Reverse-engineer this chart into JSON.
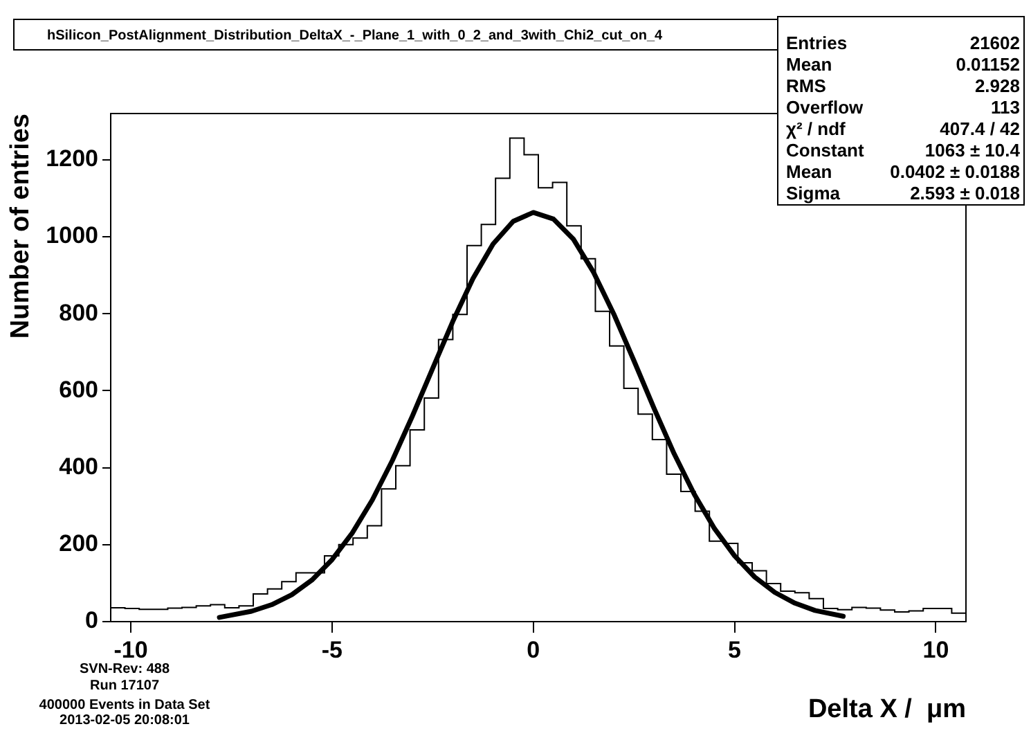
{
  "chart_data": {
    "type": "histogram",
    "title": "hSilicon_PostAlignment_Distribution_DeltaX_-_Plane_1_with_0_2_and_3with_Chi2_cut_on_4",
    "xlabel": "Delta X /  μm",
    "ylabel": "Number of entries",
    "series": [
      {
        "type": "histogram",
        "color": "#000000",
        "bins": [
          -10.5,
          -10.146,
          -9.792,
          -9.438,
          -9.083,
          -8.729,
          -8.375,
          -8.021,
          -7.667,
          -7.313,
          -6.958,
          -6.604,
          -6.25,
          -5.896,
          -5.542,
          -5.188,
          -4.833,
          -4.479,
          -4.125,
          -3.771,
          -3.417,
          -3.063,
          -2.708,
          -2.354,
          -2.0,
          -1.646,
          -1.292,
          -0.938,
          -0.583,
          -0.229,
          0.125,
          0.479,
          0.833,
          1.188,
          1.542,
          1.896,
          2.25,
          2.604,
          2.958,
          3.313,
          3.667,
          4.021,
          4.375,
          4.729,
          5.083,
          5.438,
          5.792,
          6.146,
          6.5,
          6.854,
          7.208,
          7.563,
          7.917,
          8.271,
          8.625,
          8.979,
          9.333,
          9.688,
          10.042,
          10.396,
          10.75
        ],
        "values": [
          36,
          34,
          32,
          32,
          35,
          37,
          41,
          44,
          36,
          41,
          72,
          85,
          104,
          127,
          127,
          171,
          200,
          217,
          249,
          345,
          405,
          498,
          581,
          733,
          798,
          977,
          1032,
          1152,
          1256,
          1213,
          1127,
          1141,
          1028,
          943,
          806,
          716,
          606,
          539,
          473,
          383,
          338,
          287,
          209,
          203,
          153,
          132,
          99,
          79,
          75,
          60,
          34,
          31,
          37,
          35,
          30,
          25,
          28,
          34,
          34,
          22
        ]
      },
      {
        "type": "line",
        "color": "#000000",
        "x": [
          -7.8,
          -7,
          -6.5,
          -6,
          -5.5,
          -5,
          -4.5,
          -4,
          -3.5,
          -3,
          -2.5,
          -2,
          -1.5,
          -1,
          -0.5,
          0,
          0.5,
          1,
          1.5,
          2,
          2.5,
          3,
          3.5,
          4,
          4.5,
          5,
          5.5,
          6,
          6.5,
          7,
          7.7
        ],
        "values": [
          11,
          27,
          44,
          70,
          108,
          161,
          230,
          316,
          419,
          535,
          658,
          780,
          891,
          981,
          1040,
          1063,
          1046,
          993,
          907,
          799,
          678,
          554,
          436,
          331,
          242,
          171,
          116,
          76,
          48,
          29,
          14
        ]
      }
    ],
    "xlim": [
      -10.5,
      10.75
    ],
    "xticks": [
      -10,
      -5,
      0,
      5,
      10
    ],
    "ylim": [
      0,
      1320
    ],
    "yticks": [
      0,
      200,
      400,
      600,
      800,
      1000,
      1200
    ],
    "annotations": [
      "Entries",
      "21602",
      "Mean",
      "0.01152",
      "RMS",
      "2.928",
      "Overflow",
      "113",
      "χ² / ndf",
      "407.4 / 42",
      "Constant",
      "1063 ± 10.4",
      "Mean",
      "0.0402 ± 0.0188",
      "Sigma",
      "2.593 ± 0.018",
      "SVN-Rev: 488",
      "Run 17107",
      "400000 Events in Data Set",
      "2013-02-05 20:08:01"
    ]
  }
}
